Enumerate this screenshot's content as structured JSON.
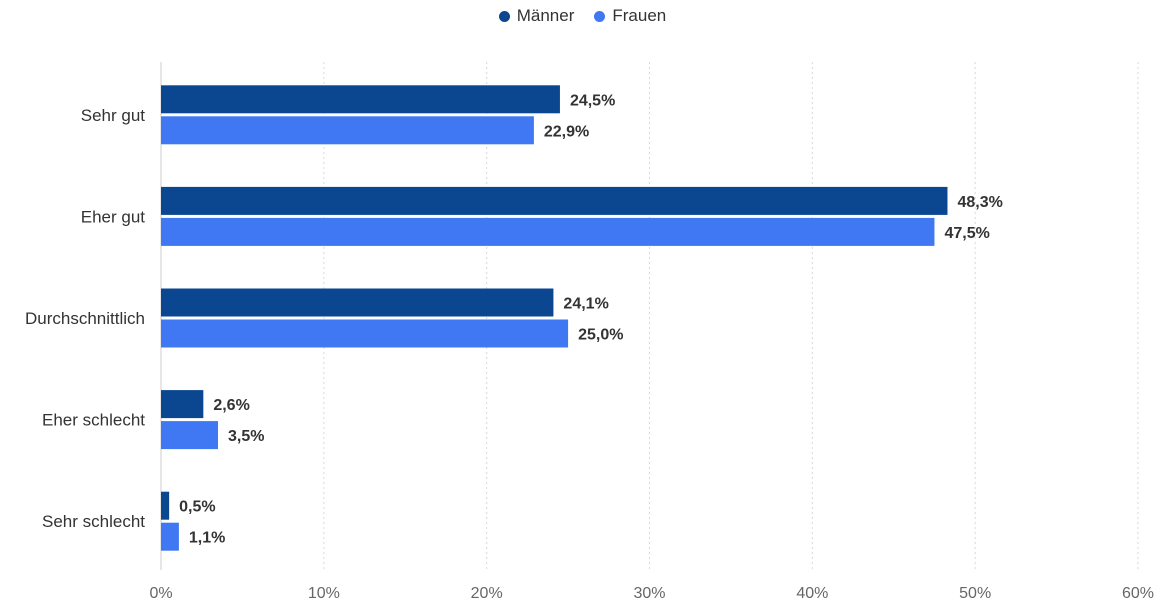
{
  "chart_data": {
    "type": "bar",
    "orientation": "horizontal",
    "categories": [
      "Sehr gut",
      "Eher gut",
      "Durchschnittlich",
      "Eher schlecht",
      "Sehr schlecht"
    ],
    "series": [
      {
        "name": "Männer",
        "color": "#0b4790",
        "values": [
          24.5,
          48.3,
          24.1,
          2.6,
          0.5
        ],
        "labels": [
          "24,5%",
          "48,3%",
          "24,1%",
          "2,6%",
          "0,5%"
        ]
      },
      {
        "name": "Frauen",
        "color": "#3f78f2",
        "values": [
          22.9,
          47.5,
          25.0,
          3.5,
          1.1
        ],
        "labels": [
          "22,9%",
          "47,5%",
          "25,0%",
          "3,5%",
          "1,1%"
        ]
      }
    ],
    "xlim": [
      0,
      60
    ],
    "xticks": [
      0,
      10,
      20,
      30,
      40,
      50,
      60
    ],
    "xtick_labels": [
      "0%",
      "10%",
      "20%",
      "30%",
      "40%",
      "50%",
      "60%"
    ],
    "grid": true,
    "legend_position": "top-center"
  }
}
